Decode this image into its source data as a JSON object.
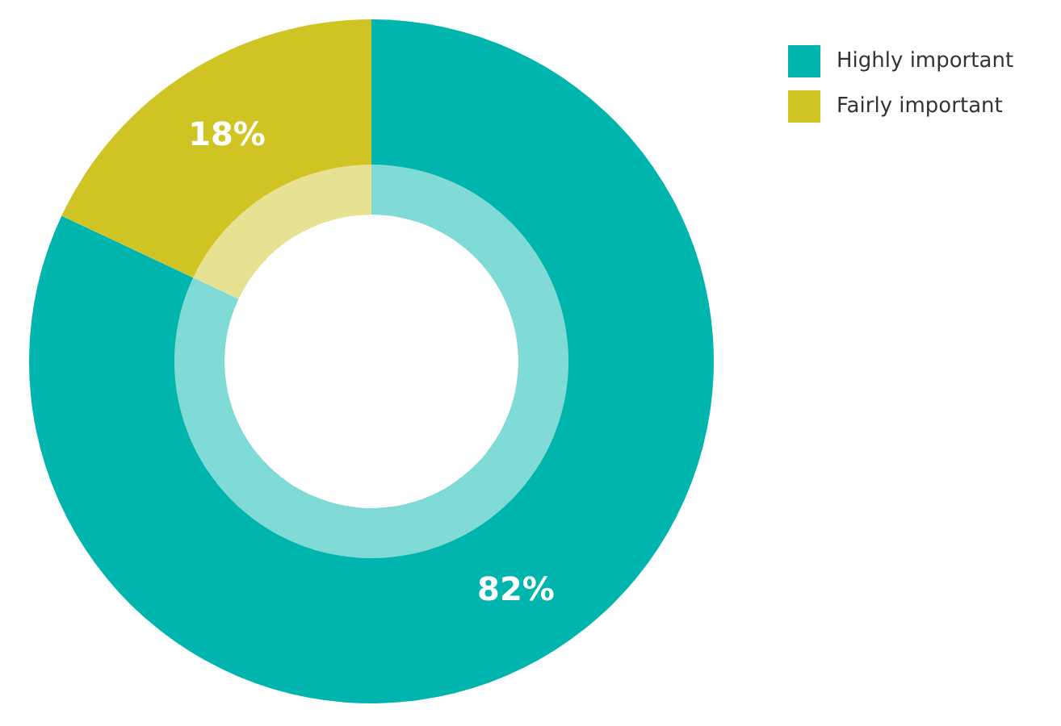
{
  "chart_data": {
    "type": "donut",
    "categories": [
      "Highly important",
      "Fairly important"
    ],
    "values": [
      82,
      18
    ],
    "colors": [
      "#00b5ad",
      "#cfc423"
    ],
    "value_labels": [
      "82%",
      "18%"
    ],
    "legend": "top right"
  }
}
